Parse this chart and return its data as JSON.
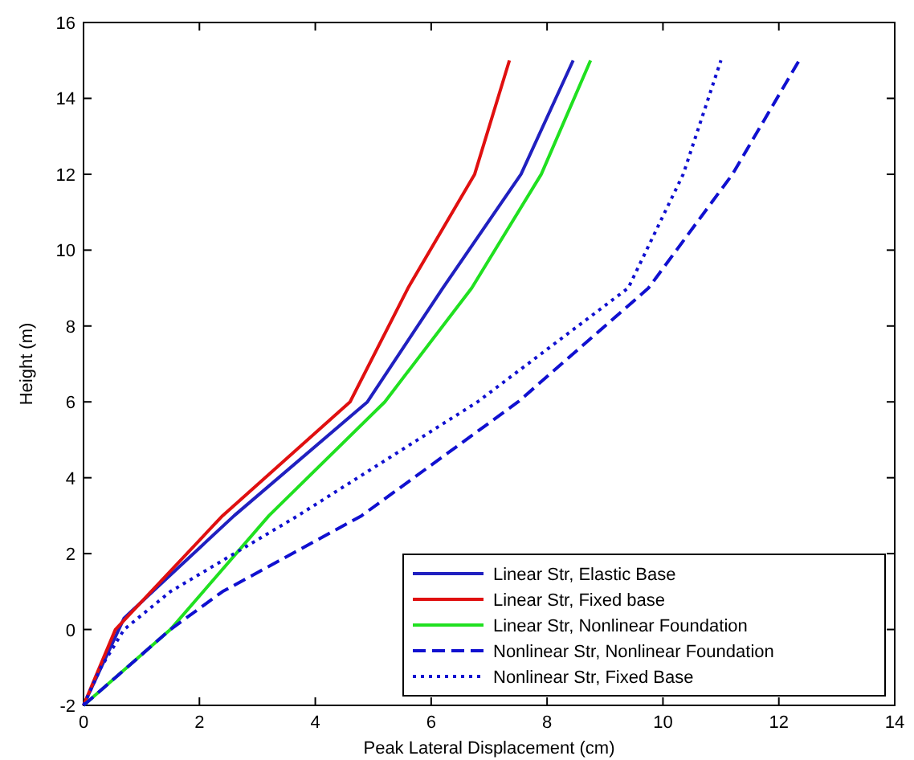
{
  "chart_data": {
    "type": "line",
    "xlabel": "Peak Lateral Displacement (cm)",
    "ylabel": "Height (m)",
    "xlim": [
      0,
      14
    ],
    "xticks": [
      0,
      2,
      4,
      6,
      8,
      10,
      12,
      14
    ],
    "ylim": [
      -2,
      16
    ],
    "yticks": [
      -2,
      0,
      2,
      4,
      6,
      8,
      10,
      12,
      14,
      16
    ],
    "grid": false,
    "legend": "bottom right",
    "marker": "none",
    "series": [
      {
        "name": "Linear Str, Elastic Base",
        "color": "#2020c0",
        "line_style": "solid",
        "x": [
          0,
          0.7,
          2.6,
          4.9,
          6.2,
          7.55,
          8.45
        ],
        "values": [
          -2,
          0.3,
          3,
          6,
          9,
          12,
          15
        ]
      },
      {
        "name": "Linear Str, Fixed base",
        "color": "#e01010",
        "line_style": "solid",
        "x": [
          0,
          0.55,
          2.4,
          4.6,
          5.6,
          6.75,
          7.35
        ],
        "values": [
          -2,
          0,
          3,
          6,
          9,
          12,
          15
        ]
      },
      {
        "name": "Linear Str, Nonlinear Foundation",
        "color": "#20e020",
        "line_style": "solid",
        "x": [
          0,
          1.5,
          3.2,
          5.2,
          6.7,
          7.9,
          8.75
        ],
        "values": [
          -2,
          0,
          3,
          6,
          9,
          12,
          15
        ]
      },
      {
        "name": "Nonlinear Str, Nonlinear Foundation",
        "color": "#1010d0",
        "line_style": "dashed",
        "x": [
          0,
          1.5,
          2.4,
          4.8,
          7.5,
          9.75,
          11.2,
          12.35
        ],
        "values": [
          -2,
          0,
          1,
          3,
          6,
          9,
          12,
          15
        ]
      },
      {
        "name": "Nonlinear Str, Fixed Base",
        "color": "#1010d0",
        "line_style": "dotted",
        "x": [
          0,
          0.3,
          0.7,
          1.5,
          3.7,
          6.8,
          9.4,
          10.35,
          11.0
        ],
        "values": [
          -2,
          -1,
          0,
          1,
          3,
          6,
          9,
          12,
          15
        ]
      }
    ]
  }
}
